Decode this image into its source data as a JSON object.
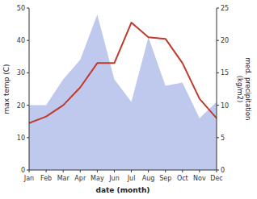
{
  "chart_data": {
    "type": "line",
    "categories": [
      "Jan",
      "Feb",
      "Mar",
      "Apr",
      "May",
      "Jun",
      "Jul",
      "Aug",
      "Sep",
      "Oct",
      "Nov",
      "Dec"
    ],
    "xlabel": "date (month)",
    "ylabel": "max temp (C)",
    "y2label": "med. precipitation\n(kg/m2)",
    "series": [
      {
        "type": "area",
        "axis": "y2",
        "color": "#bfc8ed",
        "values": [
          10.0,
          10.0,
          14.0,
          17.0,
          24.0,
          14.0,
          10.5,
          20.5,
          13.0,
          13.5,
          8.0,
          10.5
        ]
      },
      {
        "type": "line",
        "color": "#c0392b",
        "values": [
          14.5,
          16.5,
          20.0,
          25.5,
          33.0,
          33.0,
          45.5,
          41.0,
          40.5,
          33.0,
          22.0,
          16.0
        ]
      }
    ],
    "ylim": [
      0,
      50
    ],
    "yticks": [
      0,
      10,
      20,
      30,
      40,
      50
    ],
    "y2lim": [
      0,
      25
    ],
    "y2ticks": [
      0,
      5,
      10,
      15,
      20,
      25
    ],
    "grid": false
  }
}
